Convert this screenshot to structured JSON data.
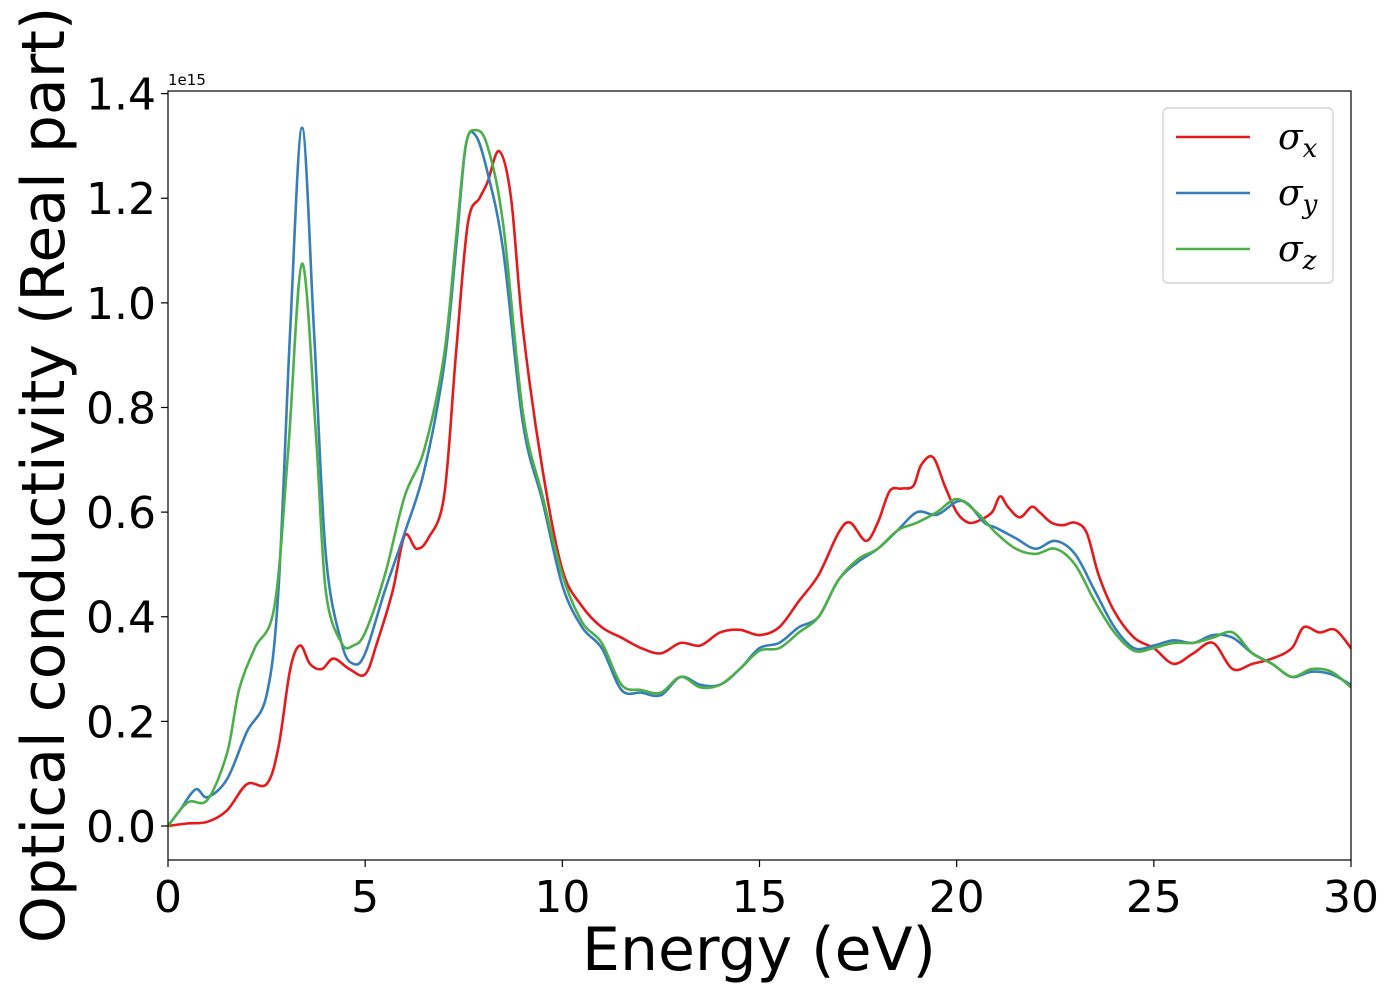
{
  "chart_data": {
    "type": "line",
    "xlabel": "Energy (eV)",
    "ylabel": "Optical conductivity (Real part)",
    "y_offset_label": "1e15",
    "xlim": [
      0,
      30
    ],
    "ylim": [
      -0.065,
      1.405
    ],
    "x_ticks": [
      0,
      5,
      10,
      15,
      20,
      25,
      30
    ],
    "x_tick_labels": [
      "0",
      "5",
      "10",
      "15",
      "20",
      "25",
      "30"
    ],
    "y_ticks": [
      0.0,
      0.2,
      0.4,
      0.6,
      0.8,
      1.0,
      1.2,
      1.4
    ],
    "y_tick_labels": [
      "0.0",
      "0.2",
      "0.4",
      "0.6",
      "0.8",
      "1.0",
      "1.2",
      "1.4"
    ],
    "grid": false,
    "legend_position": "top-right",
    "series": [
      {
        "name": "σ_x",
        "legend_main": "σ",
        "legend_sub": "x",
        "color": "#e41a1c",
        "x": [
          0,
          0.5,
          1,
          1.5,
          2,
          2.5,
          2.8,
          3.1,
          3.35,
          3.6,
          3.9,
          4.2,
          4.6,
          5,
          5.3,
          5.7,
          6,
          6.3,
          6.6,
          7,
          7.3,
          7.6,
          7.9,
          8.1,
          8.4,
          8.7,
          9,
          9.5,
          10,
          10.5,
          11,
          11.5,
          12,
          12.5,
          13,
          13.5,
          14,
          14.5,
          15,
          15.5,
          16,
          16.5,
          17,
          17.3,
          17.7,
          18,
          18.3,
          18.6,
          18.9,
          19.1,
          19.4,
          19.7,
          20,
          20.3,
          20.6,
          20.9,
          21.1,
          21.3,
          21.6,
          21.9,
          22.1,
          22.4,
          22.7,
          23,
          23.3,
          23.6,
          24,
          24.5,
          25,
          25.5,
          26,
          26.5,
          27,
          27.5,
          28,
          28.5,
          28.8,
          29.2,
          29.6,
          30
        ],
        "values": [
          0,
          0.005,
          0.008,
          0.03,
          0.08,
          0.08,
          0.15,
          0.3,
          0.345,
          0.31,
          0.3,
          0.32,
          0.3,
          0.29,
          0.35,
          0.45,
          0.555,
          0.53,
          0.55,
          0.63,
          0.9,
          1.15,
          1.2,
          1.23,
          1.29,
          1.2,
          0.95,
          0.68,
          0.49,
          0.42,
          0.38,
          0.36,
          0.34,
          0.33,
          0.35,
          0.345,
          0.37,
          0.375,
          0.365,
          0.38,
          0.43,
          0.48,
          0.56,
          0.58,
          0.545,
          0.58,
          0.64,
          0.645,
          0.65,
          0.69,
          0.705,
          0.65,
          0.6,
          0.58,
          0.585,
          0.6,
          0.63,
          0.61,
          0.59,
          0.61,
          0.6,
          0.58,
          0.575,
          0.58,
          0.56,
          0.48,
          0.41,
          0.36,
          0.34,
          0.31,
          0.33,
          0.35,
          0.3,
          0.31,
          0.32,
          0.34,
          0.38,
          0.37,
          0.375,
          0.34
        ]
      },
      {
        "name": "σ_y",
        "legend_main": "σ",
        "legend_sub": "y",
        "color": "#377eb8",
        "x": [
          0,
          0.3,
          0.7,
          1,
          1.5,
          2,
          2.5,
          2.8,
          3.1,
          3.4,
          3.7,
          4,
          4.4,
          4.7,
          5,
          5.5,
          6,
          6.5,
          7,
          7.3,
          7.55,
          7.8,
          8.1,
          8.5,
          9,
          9.5,
          10,
          10.5,
          11,
          11.5,
          12,
          12.5,
          13,
          13.5,
          14,
          14.5,
          15,
          15.5,
          16,
          16.5,
          17,
          17.5,
          18,
          18.5,
          19,
          19.5,
          20,
          20.3,
          20.7,
          21,
          21.5,
          22,
          22.5,
          23,
          23.5,
          24,
          24.5,
          25,
          25.5,
          26,
          26.5,
          27,
          27.5,
          28,
          28.5,
          29,
          29.5,
          30
        ],
        "values": [
          0,
          0.03,
          0.07,
          0.055,
          0.09,
          0.18,
          0.25,
          0.45,
          0.95,
          1.335,
          0.95,
          0.52,
          0.35,
          0.31,
          0.33,
          0.45,
          0.56,
          0.68,
          0.88,
          1.1,
          1.3,
          1.32,
          1.25,
          1.1,
          0.77,
          0.62,
          0.46,
          0.38,
          0.34,
          0.26,
          0.255,
          0.25,
          0.285,
          0.27,
          0.27,
          0.3,
          0.34,
          0.35,
          0.38,
          0.4,
          0.47,
          0.505,
          0.53,
          0.565,
          0.6,
          0.595,
          0.62,
          0.615,
          0.58,
          0.57,
          0.55,
          0.53,
          0.545,
          0.52,
          0.45,
          0.38,
          0.34,
          0.345,
          0.355,
          0.35,
          0.365,
          0.36,
          0.33,
          0.31,
          0.285,
          0.295,
          0.29,
          0.27
        ]
      },
      {
        "name": "σ_z",
        "legend_main": "σ",
        "legend_sub": "z",
        "color": "#4daf4a",
        "x": [
          0,
          0.5,
          1,
          1.5,
          1.8,
          2.2,
          2.7,
          3.05,
          3.4,
          3.75,
          4,
          4.4,
          4.7,
          5,
          5.5,
          6,
          6.5,
          7,
          7.3,
          7.55,
          7.8,
          8.1,
          8.5,
          9,
          9.5,
          10,
          10.5,
          11,
          11.5,
          12,
          12.5,
          13,
          13.5,
          14,
          14.5,
          15,
          15.5,
          16,
          16.5,
          17,
          17.5,
          18,
          18.5,
          19,
          19.5,
          20,
          20.5,
          21,
          21.5,
          22,
          22.5,
          23,
          23.5,
          24,
          24.5,
          25,
          25.5,
          26,
          26.5,
          27,
          27.5,
          28,
          28.5,
          29,
          29.5,
          30
        ],
        "values": [
          0,
          0.045,
          0.05,
          0.14,
          0.26,
          0.34,
          0.42,
          0.72,
          1.075,
          0.75,
          0.45,
          0.35,
          0.345,
          0.37,
          0.48,
          0.63,
          0.72,
          0.9,
          1.12,
          1.3,
          1.33,
          1.3,
          1.15,
          0.79,
          0.63,
          0.48,
          0.39,
          0.35,
          0.27,
          0.26,
          0.255,
          0.285,
          0.265,
          0.27,
          0.3,
          0.335,
          0.34,
          0.37,
          0.4,
          0.47,
          0.51,
          0.53,
          0.565,
          0.58,
          0.6,
          0.625,
          0.6,
          0.56,
          0.53,
          0.52,
          0.53,
          0.5,
          0.43,
          0.37,
          0.335,
          0.34,
          0.35,
          0.35,
          0.36,
          0.37,
          0.33,
          0.31,
          0.285,
          0.3,
          0.295,
          0.265
        ]
      }
    ]
  }
}
